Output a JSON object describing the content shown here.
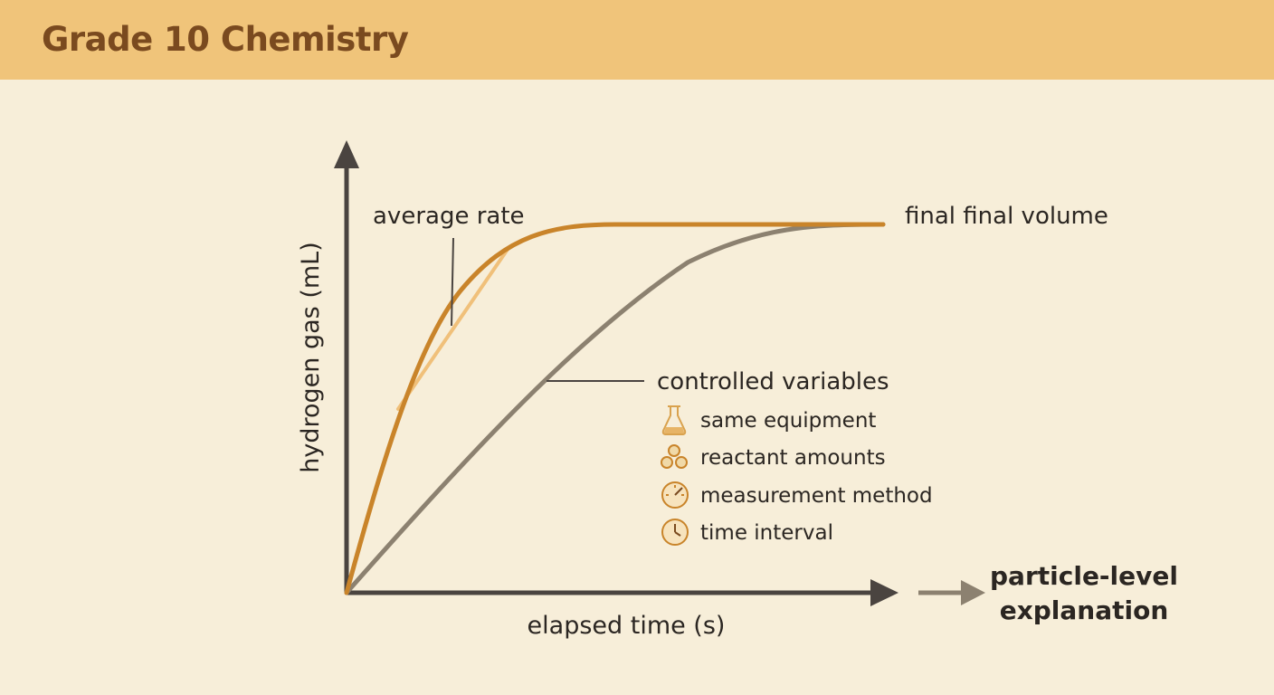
{
  "header": {
    "title": "Grade 10 Chemistry"
  },
  "axes": {
    "y_label": "hydrogen gas (mL)",
    "x_label": "elapsed time (s)"
  },
  "annotations": {
    "average_rate": "average rate",
    "final_volume": "final final volume",
    "controlled_variables": "controlled variables",
    "particle_level": [
      "particle-level",
      "explanation"
    ]
  },
  "controlled_variables": [
    {
      "icon": "flask-icon",
      "label": "same equipment"
    },
    {
      "icon": "particles-icon",
      "label": "reactant amounts"
    },
    {
      "icon": "gauge-icon",
      "label": "measurement method"
    },
    {
      "icon": "clock-icon",
      "label": "time interval"
    }
  ],
  "colors": {
    "header_bg": "#f0c47a",
    "page_bg": "#f7eed9",
    "fast_curve": "#c9842a",
    "slow_curve": "#8c8170",
    "tangent": "#f0c07a",
    "axis": "#4a4440",
    "icon": "#d9a24e"
  }
}
